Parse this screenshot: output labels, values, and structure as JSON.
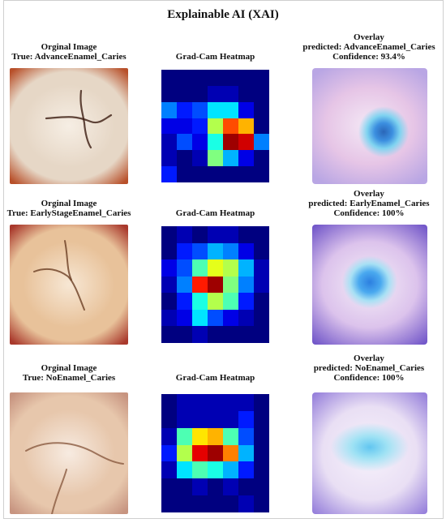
{
  "title": "Explainable AI (XAI)",
  "rows": [
    {
      "original_label": "Orginal Image",
      "true_label": "True: AdvanceEnamel_Caries",
      "heatmap_title": "Grad-Cam Heatmap",
      "overlay_title": "Overlay",
      "predicted": "predicted: AdvanceEnamel_Caries",
      "confidence": "Confidence: 93.4%",
      "heat_grid": [
        [
          0,
          0,
          0,
          0,
          0,
          0,
          0
        ],
        [
          0,
          0,
          0,
          0.05,
          0.05,
          0,
          0
        ],
        [
          0.25,
          0.15,
          0.2,
          0.35,
          0.35,
          0.1,
          0
        ],
        [
          0.1,
          0.1,
          0.15,
          0.55,
          0.8,
          0.7,
          0
        ],
        [
          0.05,
          0.2,
          0.1,
          0.4,
          0.97,
          0.92,
          0.25
        ],
        [
          0.05,
          0,
          0.05,
          0.5,
          0.3,
          0.1,
          0
        ],
        [
          0.15,
          0,
          0,
          0,
          0,
          0,
          0
        ]
      ],
      "image_palette": {
        "base": "#e6d7c6",
        "bg": "#b8502a",
        "light": "#f6eee4"
      }
    },
    {
      "original_label": "Orginal Image",
      "true_label": "True: EarlyStageEnamel_Caries",
      "heatmap_title": "Grad-Cam Heatmap",
      "overlay_title": "Overlay",
      "predicted": "predicted: EarlyEnamel_Caries",
      "confidence": "Confidence: 100%",
      "heat_grid": [
        [
          0,
          0.05,
          0,
          0.05,
          0.05,
          0,
          0
        ],
        [
          0,
          0.15,
          0.2,
          0.3,
          0.25,
          0.1,
          0
        ],
        [
          0.1,
          0.2,
          0.45,
          0.6,
          0.55,
          0.3,
          0.05
        ],
        [
          0.05,
          0.25,
          0.85,
          0.97,
          0.5,
          0.25,
          0.05
        ],
        [
          0,
          0.15,
          0.4,
          0.55,
          0.45,
          0.15,
          0
        ],
        [
          0.05,
          0.1,
          0.35,
          0.2,
          0.1,
          0.05,
          0
        ],
        [
          0,
          0,
          0.05,
          0,
          0,
          0,
          0
        ]
      ],
      "image_palette": {
        "base": "#e8c29a",
        "bg": "#a9392c",
        "light": "#f7e7d4"
      }
    },
    {
      "original_label": "Orginal Image",
      "true_label": "True: NoEnamel_Caries",
      "heatmap_title": "Grad-Cam Heatmap",
      "overlay_title": "Overlay",
      "predicted": "predicted: NoEnamel_Caries",
      "confidence": "Confidence: 100%",
      "heat_grid": [
        [
          0,
          0.05,
          0.05,
          0.05,
          0.05,
          0.05,
          0
        ],
        [
          0,
          0.05,
          0.05,
          0.05,
          0.05,
          0.15,
          0
        ],
        [
          0.05,
          0.45,
          0.65,
          0.7,
          0.45,
          0.2,
          0
        ],
        [
          0.15,
          0.55,
          0.9,
          0.97,
          0.75,
          0.3,
          0
        ],
        [
          0.05,
          0.35,
          0.45,
          0.4,
          0.3,
          0.15,
          0
        ],
        [
          0,
          0,
          0.05,
          0,
          0.05,
          0,
          0
        ],
        [
          0,
          0,
          0,
          0,
          0,
          0.05,
          0
        ]
      ],
      "image_palette": {
        "base": "#e7c7ac",
        "bg": "#c79480",
        "light": "#f7ebe1"
      }
    }
  ]
}
